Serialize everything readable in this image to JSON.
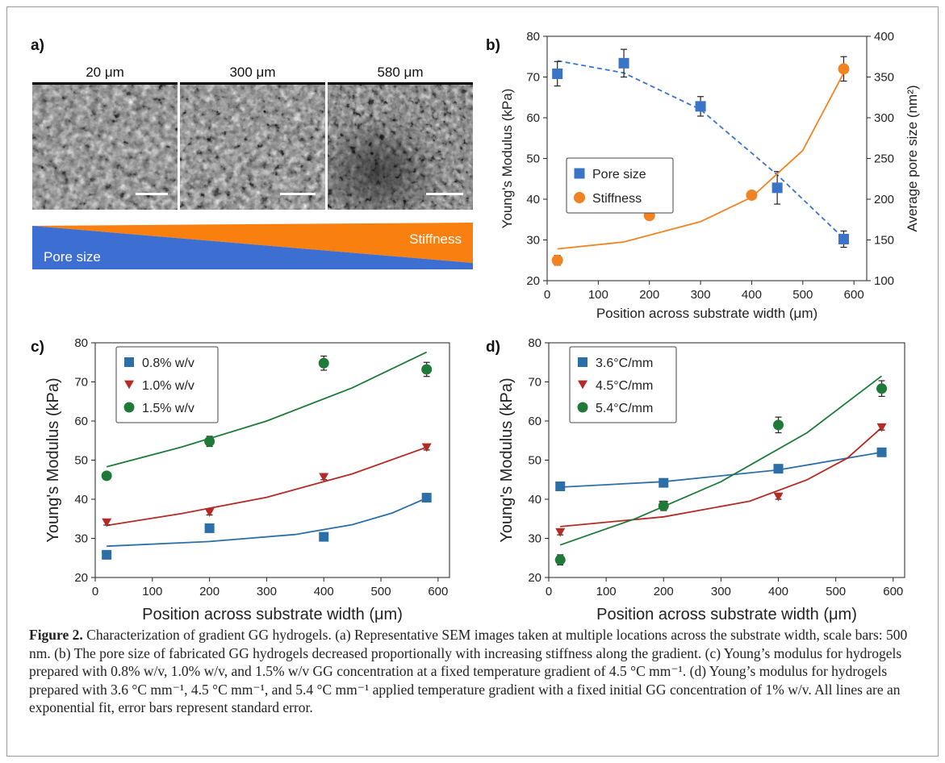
{
  "panels": {
    "a": {
      "letter": "a)",
      "images": [
        {
          "label": "20 μm"
        },
        {
          "label": "300 μm"
        },
        {
          "label": "580 μm"
        }
      ],
      "gradient_labels": {
        "top": "Stiffness",
        "bottom": "Pore size"
      },
      "colors": {
        "stiffness": "#f97f0e",
        "pore": "#3f6fd0"
      }
    },
    "b": {
      "letter": "b)"
    },
    "c": {
      "letter": "c)"
    },
    "d": {
      "letter": "d)"
    }
  },
  "chart_data": [
    {
      "id": "b",
      "type": "scatter",
      "xlabel": "Position across substrate width (μm)",
      "ylabel": "Young's Modulus (kPa)",
      "ylabel_right": "Average pore size (nm²)",
      "xlim": [
        0,
        625
      ],
      "ylim": [
        20,
        80
      ],
      "ylim_right": [
        100,
        400
      ],
      "xticks": [
        0,
        100,
        200,
        300,
        400,
        500,
        600
      ],
      "yticks": [
        20,
        30,
        40,
        50,
        60,
        70,
        80
      ],
      "yticks_right": [
        100,
        150,
        200,
        250,
        300,
        350,
        400
      ],
      "legend_position": "center-left",
      "grid": false,
      "series": [
        {
          "name": "Pore size",
          "axis": "right",
          "marker": "square",
          "color": "#3a74c6",
          "x": [
            20,
            150,
            300,
            450,
            580
          ],
          "y": [
            354,
            367,
            314,
            214,
            151
          ],
          "err": [
            15,
            17,
            12,
            20,
            10
          ],
          "fit": [
            [
              20,
              370
            ],
            [
              150,
              355
            ],
            [
              300,
              310
            ],
            [
              450,
              230
            ],
            [
              580,
              152
            ]
          ],
          "fit_style": "dashed"
        },
        {
          "name": "Stiffness",
          "axis": "left",
          "marker": "circle",
          "color": "#f28322",
          "x": [
            20,
            200,
            400,
            580
          ],
          "y": [
            25,
            36,
            41,
            72
          ],
          "err": [
            1.2,
            0.7,
            0.7,
            3
          ],
          "fit": [
            [
              20,
              27.8
            ],
            [
              150,
              29.5
            ],
            [
              300,
              34.5
            ],
            [
              400,
              40.5
            ],
            [
              500,
              52
            ],
            [
              580,
              71
            ]
          ],
          "fit_style": "solid"
        }
      ]
    },
    {
      "id": "c",
      "type": "scatter",
      "xlabel": "Position across substrate width (μm)",
      "ylabel": "Young's Modulus (kPa)",
      "xlim": [
        0,
        620
      ],
      "ylim": [
        20,
        80
      ],
      "xticks": [
        0,
        100,
        200,
        300,
        400,
        500,
        600
      ],
      "yticks": [
        20,
        30,
        40,
        50,
        60,
        70,
        80
      ],
      "legend_position": "top-left",
      "grid": false,
      "series": [
        {
          "name": "0.8% w/v",
          "marker": "square",
          "color": "#2c6fa8",
          "x": [
            20,
            200,
            400,
            580
          ],
          "y": [
            25.8,
            32.6,
            30.4,
            40.4
          ],
          "err": [
            0.6,
            0.6,
            0.6,
            0.6
          ],
          "fit": [
            [
              20,
              28
            ],
            [
              200,
              29.2
            ],
            [
              350,
              31
            ],
            [
              450,
              33.5
            ],
            [
              520,
              36.5
            ],
            [
              580,
              40.3
            ]
          ]
        },
        {
          "name": "1.0% w/v",
          "marker": "triangle-down",
          "color": "#b52a25",
          "x": [
            20,
            200,
            400,
            580
          ],
          "y": [
            34,
            36.6,
            45.6,
            53.2
          ],
          "err": [
            0.6,
            0.6,
            0.6,
            0.6
          ],
          "fit": [
            [
              20,
              33.3
            ],
            [
              150,
              36.3
            ],
            [
              300,
              40.5
            ],
            [
              450,
              46.5
            ],
            [
              580,
              53.3
            ]
          ]
        },
        {
          "name": "1.5% w/v",
          "marker": "circle",
          "color": "#1f7a3a",
          "x": [
            20,
            200,
            400,
            580
          ],
          "y": [
            46,
            54.8,
            74.8,
            73.2
          ],
          "err": [
            0.8,
            1.3,
            1.8,
            1.8
          ],
          "fit": [
            [
              20,
              48.3
            ],
            [
              150,
              53.3
            ],
            [
              300,
              60
            ],
            [
              450,
              68.5
            ],
            [
              580,
              77.6
            ]
          ]
        }
      ]
    },
    {
      "id": "d",
      "type": "scatter",
      "xlabel": "Position across substrate width (μm)",
      "ylabel": "Young's Modulus (kPa)",
      "xlim": [
        0,
        620
      ],
      "ylim": [
        20,
        80
      ],
      "xticks": [
        0,
        100,
        200,
        300,
        400,
        500,
        600
      ],
      "yticks": [
        20,
        30,
        40,
        50,
        60,
        70,
        80
      ],
      "legend_position": "top-left",
      "grid": false,
      "series": [
        {
          "name": "3.6°C/mm",
          "marker": "square",
          "color": "#2c6fa8",
          "x": [
            20,
            200,
            400,
            580
          ],
          "y": [
            43.3,
            44.2,
            47.8,
            52
          ],
          "err": [
            0.6,
            0.6,
            0.6,
            0.6
          ],
          "fit": [
            [
              20,
              43.1
            ],
            [
              200,
              44.5
            ],
            [
              400,
              47.5
            ],
            [
              580,
              52
            ]
          ]
        },
        {
          "name": "4.5°C/mm",
          "marker": "triangle-down",
          "color": "#b52a25",
          "x": [
            20,
            200,
            400,
            580
          ],
          "y": [
            31.5,
            38.5,
            40.6,
            58.3
          ],
          "err": [
            0.6,
            0.6,
            0.6,
            0.6
          ],
          "fit": [
            [
              20,
              33
            ],
            [
              200,
              35.5
            ],
            [
              350,
              39.5
            ],
            [
              450,
              45
            ],
            [
              520,
              50.5
            ],
            [
              580,
              58.3
            ]
          ]
        },
        {
          "name": "5.4°C/mm",
          "marker": "circle",
          "color": "#1f7a3a",
          "x": [
            20,
            200,
            400,
            580
          ],
          "y": [
            24.5,
            38.3,
            59,
            68.3
          ],
          "err": [
            1.3,
            1.2,
            2,
            2
          ],
          "fit": [
            [
              20,
              28.3
            ],
            [
              150,
              35
            ],
            [
              300,
              44.5
            ],
            [
              450,
              57
            ],
            [
              580,
              71.5
            ]
          ]
        }
      ]
    }
  ],
  "caption": {
    "label": "Figure 2.",
    "text": " Characterization of gradient GG hydrogels. (a) Representative SEM images taken at multiple locations across the substrate width, scale bars: 500 nm. (b) The pore size of fabricated GG hydrogels decreased proportionally with increasing stiffness along the gradient. (c) Young’s modulus for hydrogels prepared with 0.8% w/v, 1.0% w/v, and 1.5% w/v GG concentration at a fixed temperature gradient of 4.5 °C mm⁻¹. (d) Young’s modulus for hydrogels prepared with 3.6 °C mm⁻¹, 4.5 °C mm⁻¹, and 5.4 °C mm⁻¹ applied temperature gradient with a fixed initial GG concentration of 1% w/v. All lines are an exponential fit, error bars represent standard error."
  }
}
